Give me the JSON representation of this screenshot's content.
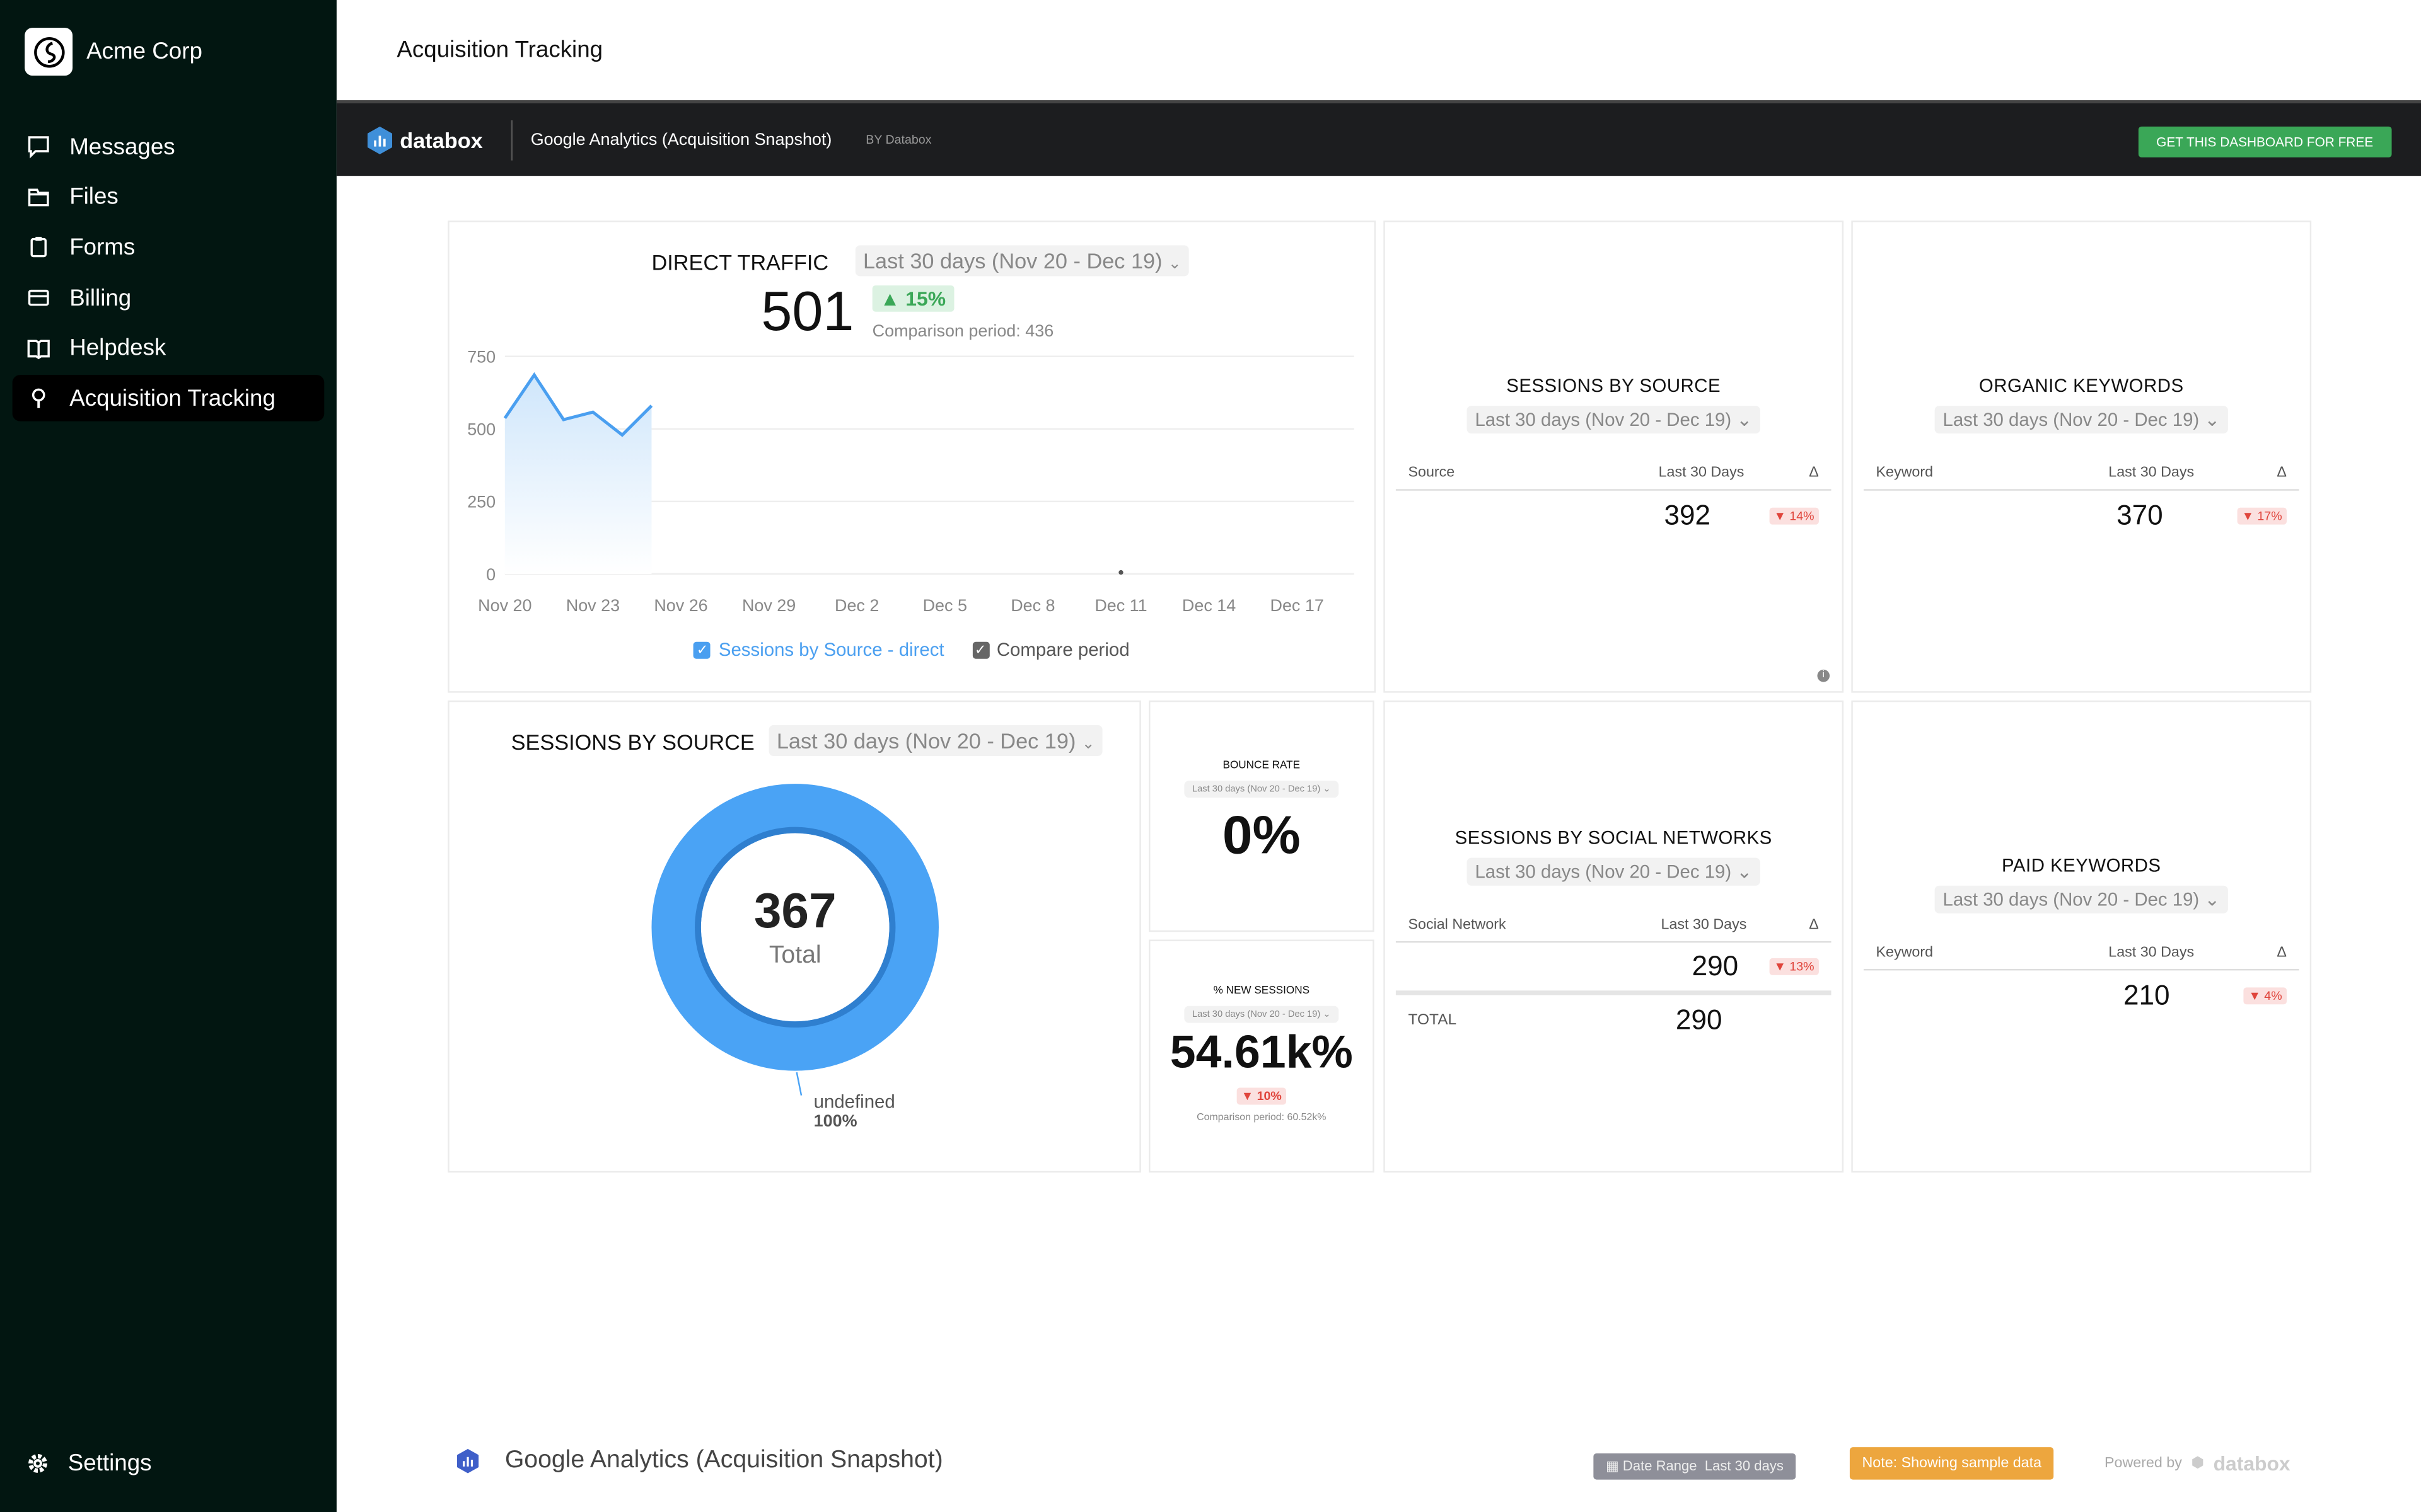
{
  "sidebar": {
    "company": "Acme Corp",
    "items": [
      {
        "label": "Messages",
        "icon": "message-icon"
      },
      {
        "label": "Files",
        "icon": "folder-icon"
      },
      {
        "label": "Forms",
        "icon": "clipboard-icon"
      },
      {
        "label": "Billing",
        "icon": "credit-card-icon"
      },
      {
        "label": "Helpdesk",
        "icon": "book-icon"
      },
      {
        "label": "Acquisition Tracking",
        "icon": "lightbulb-icon",
        "active": true
      }
    ],
    "settings": "Settings"
  },
  "header": {
    "title": "Acquisition Tracking"
  },
  "databox": {
    "logo": "databox",
    "dashboard": "Google Analytics (Acquisition Snapshot)",
    "by": "BY Databox",
    "cta": "GET THIS DASHBOARD FOR FREE"
  },
  "range": "Last 30 days (Nov 20 - Dec 19)",
  "direct": {
    "title": "DIRECT TRAFFIC",
    "value": "501",
    "change": "▲ 15%",
    "comparison": "Comparison period: 436",
    "legend1": "Sessions by Source - direct",
    "legend2": "Compare period"
  },
  "chart_data": {
    "type": "line",
    "x": [
      "Nov 20",
      "Nov 21",
      "Nov 22",
      "Nov 23",
      "Nov 24",
      "Nov 25"
    ],
    "series": [
      {
        "name": "Sessions by Source - direct",
        "values": [
          537,
          686,
          532,
          558,
          479,
          580
        ]
      }
    ],
    "compare_point": {
      "x": "Dec 11",
      "y": 0
    },
    "xticks": [
      "Nov 20",
      "Nov 23",
      "Nov 26",
      "Nov 29",
      "Dec 2",
      "Dec 5",
      "Dec 8",
      "Dec 11",
      "Dec 14",
      "Dec 17"
    ],
    "yticks": [
      "0",
      "250",
      "500",
      "750"
    ],
    "ylim": [
      0,
      750
    ],
    "grid": true,
    "color": "#4a9ff0"
  },
  "src1": {
    "title": "SESSIONS BY SOURCE",
    "col1": "Source",
    "col2": "Last 30 Days",
    "col3": "Δ",
    "value": "392",
    "change": "▼ 14%"
  },
  "organic": {
    "title": "ORGANIC KEYWORDS",
    "col1": "Keyword",
    "col2": "Last 30 Days",
    "col3": "Δ",
    "value": "370",
    "change": "▼ 17%"
  },
  "donut": {
    "title": "SESSIONS BY SOURCE",
    "total": "367",
    "total_label": "Total",
    "slice_label": "undefined",
    "slice_pct": "100%",
    "color": "#4aa3f5"
  },
  "bounce": {
    "title": "BOUNCE RATE",
    "value": "0%"
  },
  "newsess": {
    "title": "% NEW SESSIONS",
    "value": "54.61k%",
    "change": "▼ 10%",
    "comparison": "Comparison period: 60.52k%"
  },
  "social": {
    "title": "SESSIONS BY SOCIAL NETWORKS",
    "col1": "Social Network",
    "col2": "Last 30 Days",
    "col3": "Δ",
    "value": "290",
    "change": "▼ 13%",
    "total_label": "TOTAL",
    "total": "290"
  },
  "paid": {
    "title": "PAID KEYWORDS",
    "col1": "Keyword",
    "col2": "Last 30 Days",
    "col3": "Δ",
    "value": "210",
    "change": "▼ 4%"
  },
  "footer": {
    "title": "Google Analytics (Acquisition Snapshot)",
    "date_range_label": "Date Range",
    "date_range": "Last 30 days",
    "note": "Note: Showing sample data",
    "powered": "Powered by",
    "brand": "databox",
    "note_color": "#eda63e"
  }
}
